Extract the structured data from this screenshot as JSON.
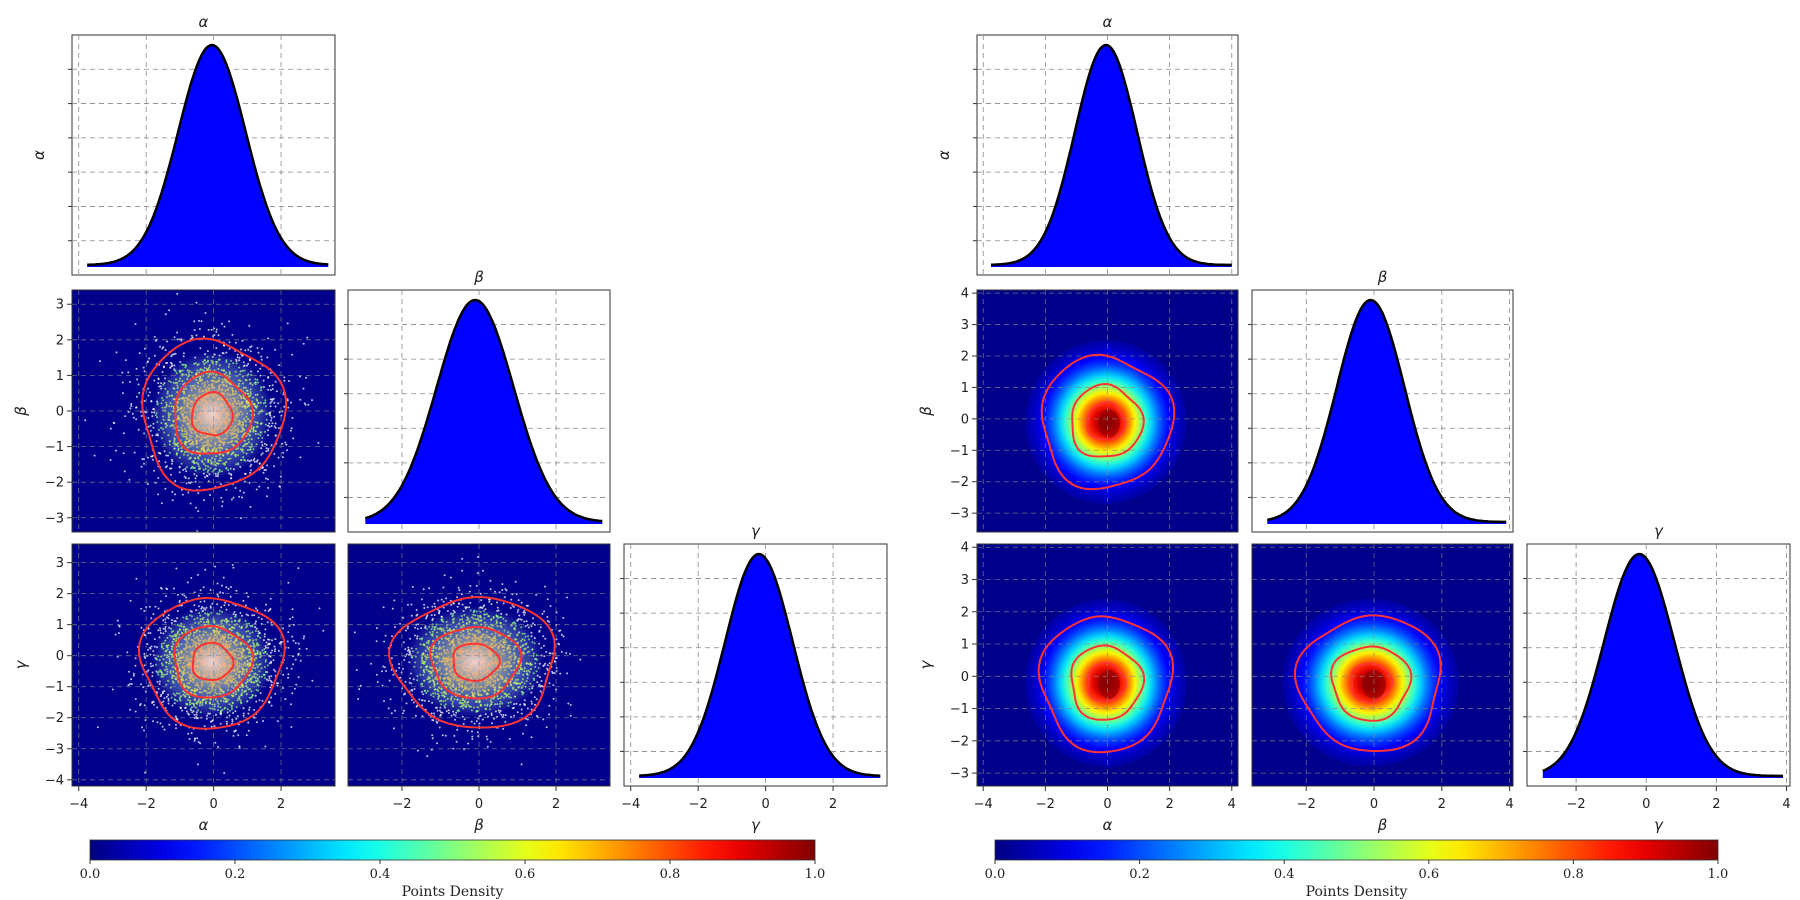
{
  "colors": {
    "hist_fill": "#0000ff",
    "hist_edge": "#000000",
    "contour": "#ff3333",
    "background": "#00008b",
    "grid": "#888888",
    "scatter": "#ffffff"
  },
  "colormap": "jet",
  "chart_data": [
    {
      "type": "corner",
      "panel": "left",
      "style": "scatter-density",
      "params": [
        "α",
        "β",
        "γ"
      ],
      "ranges": {
        "α": [
          -4.2,
          3.6
        ],
        "β": [
          -3.4,
          3.4
        ],
        "γ": [
          -4.2,
          3.6
        ]
      },
      "ticks": {
        "α": [
          -4,
          -2,
          0,
          2
        ],
        "β": [
          -3,
          -2,
          -1,
          0,
          1,
          2,
          3
        ],
        "γ": [
          -4,
          -3,
          -2,
          -1,
          0,
          1,
          2,
          3
        ]
      },
      "x_ticks": {
        "α": [
          -4,
          -2,
          0,
          2
        ],
        "β": [
          -2,
          0,
          2
        ],
        "γ": [
          -4,
          -2,
          0,
          2
        ]
      },
      "marginals": [
        {
          "param": "α",
          "mean": -0.05,
          "std": 1.0
        },
        {
          "param": "β",
          "mean": -0.1,
          "std": 1.0
        },
        {
          "param": "γ",
          "mean": -0.2,
          "std": 1.0
        }
      ],
      "pairs": [
        {
          "x": "α",
          "y": "β"
        },
        {
          "x": "α",
          "y": "γ"
        },
        {
          "x": "β",
          "y": "γ"
        }
      ],
      "contour_levels_sigma": [
        0.6,
        1.15,
        2.1
      ],
      "colorbar": {
        "label": "Points Density",
        "ticks": [
          "0.0",
          "0.2",
          "0.4",
          "0.6",
          "0.8",
          "1.0"
        ],
        "range": [
          0,
          1
        ]
      }
    },
    {
      "type": "corner",
      "panel": "right",
      "style": "kde-heatmap",
      "params": [
        "α",
        "β",
        "γ"
      ],
      "ranges": {
        "α": [
          -4.2,
          4.2
        ],
        "β": [
          -3.6,
          4.1
        ],
        "γ": [
          -3.4,
          4.1
        ]
      },
      "ticks": {
        "α": [
          -4,
          -2,
          0,
          2,
          4
        ],
        "β": [
          -3,
          -2,
          -1,
          0,
          1,
          2,
          3,
          4
        ],
        "γ": [
          -3,
          -2,
          -1,
          0,
          1,
          2,
          3,
          4
        ]
      },
      "x_ticks": {
        "α": [
          -4,
          -2,
          0,
          2,
          4
        ],
        "β": [
          -2,
          0,
          2,
          4
        ],
        "γ": [
          -2,
          0,
          2,
          4
        ]
      },
      "marginals": [
        {
          "param": "α",
          "mean": -0.05,
          "std": 1.0
        },
        {
          "param": "β",
          "mean": -0.1,
          "std": 1.0
        },
        {
          "param": "γ",
          "mean": -0.2,
          "std": 1.0
        }
      ],
      "pairs": [
        {
          "x": "α",
          "y": "β"
        },
        {
          "x": "α",
          "y": "γ"
        },
        {
          "x": "β",
          "y": "γ"
        }
      ],
      "contour_levels_sigma": [
        0.6,
        1.15,
        2.1
      ],
      "colorbar": {
        "label": "Points Density",
        "ticks": [
          "0.0",
          "0.2",
          "0.4",
          "0.6",
          "0.8",
          "1.0"
        ],
        "range": [
          0,
          1
        ]
      }
    }
  ]
}
